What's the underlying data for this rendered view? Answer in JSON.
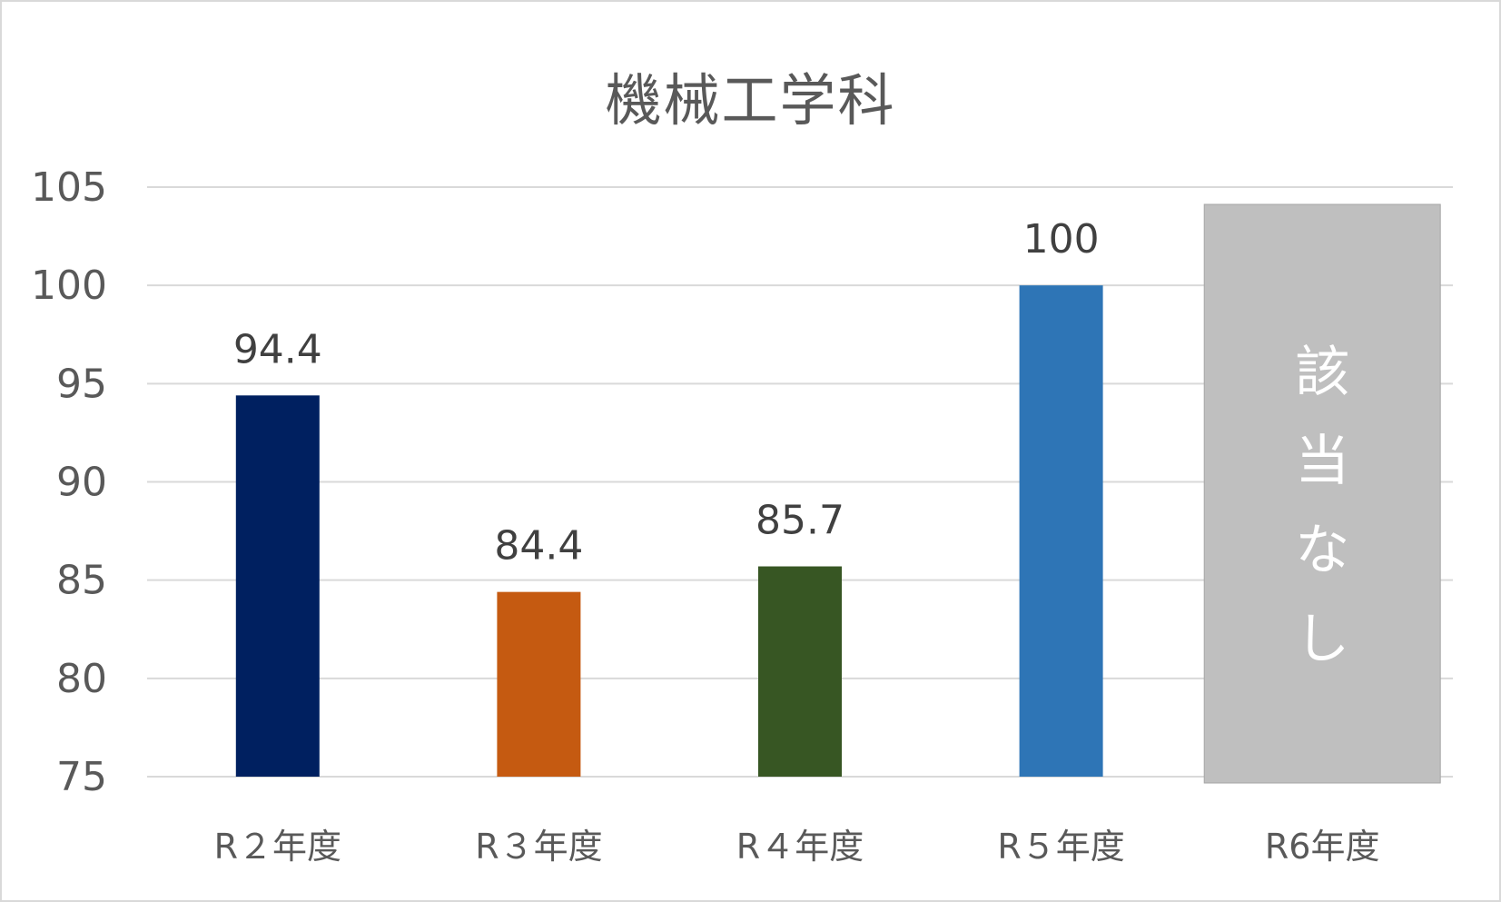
{
  "chart_data": {
    "type": "bar",
    "title": "機械工学科",
    "xlabel": "",
    "ylabel": "",
    "ylim": [
      75,
      105
    ],
    "yticks": [
      "75",
      "80",
      "85",
      "90",
      "95",
      "100",
      "105"
    ],
    "grid": true,
    "categories": [
      "R２年度",
      "R３年度",
      "R４年度",
      "R５年度",
      "R6年度"
    ],
    "values": [
      94.4,
      84.4,
      85.7,
      100,
      null
    ],
    "data_labels": [
      "94.4",
      "84.4",
      "85.7",
      "100",
      ""
    ],
    "colors": [
      "#002060",
      "#c55a11",
      "#375623",
      "#2e75b6",
      "#bfbfbf"
    ],
    "not_applicable": {
      "category": "R6年度",
      "label": [
        "該",
        "当",
        "な",
        "し"
      ],
      "color": "#bfbfbf"
    }
  }
}
